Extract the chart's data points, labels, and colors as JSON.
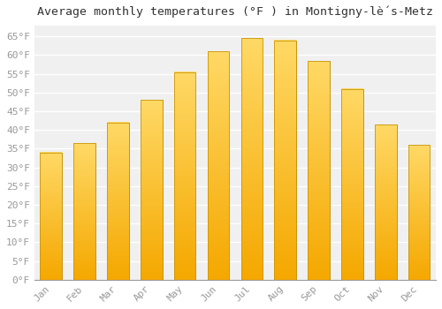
{
  "title": "Average monthly temperatures (°F ) in Montigny-lè́s-Metz",
  "months": [
    "Jan",
    "Feb",
    "Mar",
    "Apr",
    "May",
    "Jun",
    "Jul",
    "Aug",
    "Sep",
    "Oct",
    "Nov",
    "Dec"
  ],
  "values": [
    34,
    36.5,
    42,
    48,
    55.5,
    61,
    64.5,
    64,
    58.5,
    51,
    41.5,
    36
  ],
  "bar_color_bottom": "#F5A800",
  "bar_color_top": "#FFD966",
  "bar_edge_color": "#C8960C",
  "background_color": "#FFFFFF",
  "plot_bg_color": "#F0F0F0",
  "grid_color": "#FFFFFF",
  "ylim": [
    0,
    68
  ],
  "yticks": [
    0,
    5,
    10,
    15,
    20,
    25,
    30,
    35,
    40,
    45,
    50,
    55,
    60,
    65
  ],
  "ytick_labels": [
    "0°F",
    "5°F",
    "10°F",
    "15°F",
    "20°F",
    "25°F",
    "30°F",
    "35°F",
    "40°F",
    "45°F",
    "50°F",
    "55°F",
    "60°F",
    "65°F"
  ],
  "title_fontsize": 9.5,
  "tick_fontsize": 8,
  "font_family": "monospace",
  "tick_color": "#999999"
}
